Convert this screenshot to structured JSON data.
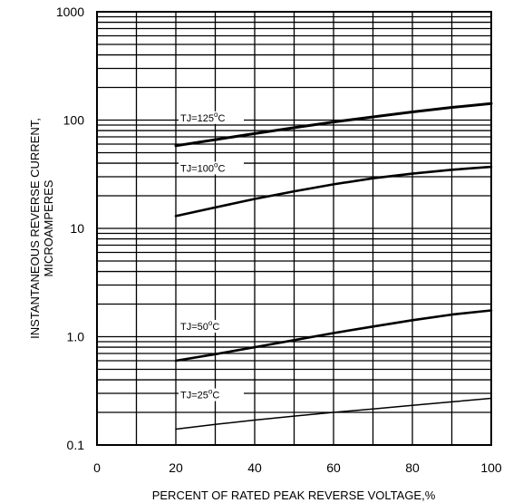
{
  "chart_data": {
    "type": "line",
    "title": "",
    "xlabel": "PERCENT OF RATED PEAK REVERSE VOLTAGE,%",
    "ylabel_lines": [
      "INSTANTANEOUS REVERSE CURRENT,",
      "MICROAMPERES"
    ],
    "xlim": [
      0,
      100
    ],
    "ylim": [
      0.1,
      1000
    ],
    "yscale": "log",
    "grid": true,
    "x_ticks": [
      "0",
      "20",
      "40",
      "60",
      "80",
      "100"
    ],
    "y_ticks": [
      {
        "value": 0.1,
        "label": "0.1"
      },
      {
        "value": 1,
        "label": "1.0"
      },
      {
        "value": 10,
        "label": "10"
      },
      {
        "value": 100,
        "label": "100"
      },
      {
        "value": 1000,
        "label": "1000"
      }
    ],
    "x": [
      20,
      30,
      40,
      50,
      60,
      70,
      80,
      90,
      100
    ],
    "series": [
      {
        "name": "TJ=125°C",
        "label_base": "TJ=125",
        "label_sup": "o",
        "label_unit": "C",
        "values": [
          58,
          66,
          75,
          85,
          96,
          107,
          119,
          131,
          142
        ]
      },
      {
        "name": "TJ=100°C",
        "label_base": "TJ=100",
        "label_sup": "o",
        "label_unit": "C",
        "values": [
          13,
          15.6,
          18.7,
          22,
          25.5,
          29,
          32,
          34.8,
          37
        ]
      },
      {
        "name": "TJ=50°C",
        "label_base": "TJ=50",
        "label_sup": "o",
        "label_unit": "C",
        "values": [
          0.6,
          0.69,
          0.8,
          0.93,
          1.08,
          1.24,
          1.42,
          1.6,
          1.75
        ]
      },
      {
        "name": "TJ=25°C",
        "label_base": "TJ=25",
        "label_sup": "o",
        "label_unit": "C",
        "values": [
          0.14,
          0.155,
          0.17,
          0.185,
          0.2,
          0.215,
          0.232,
          0.25,
          0.27
        ]
      }
    ]
  }
}
